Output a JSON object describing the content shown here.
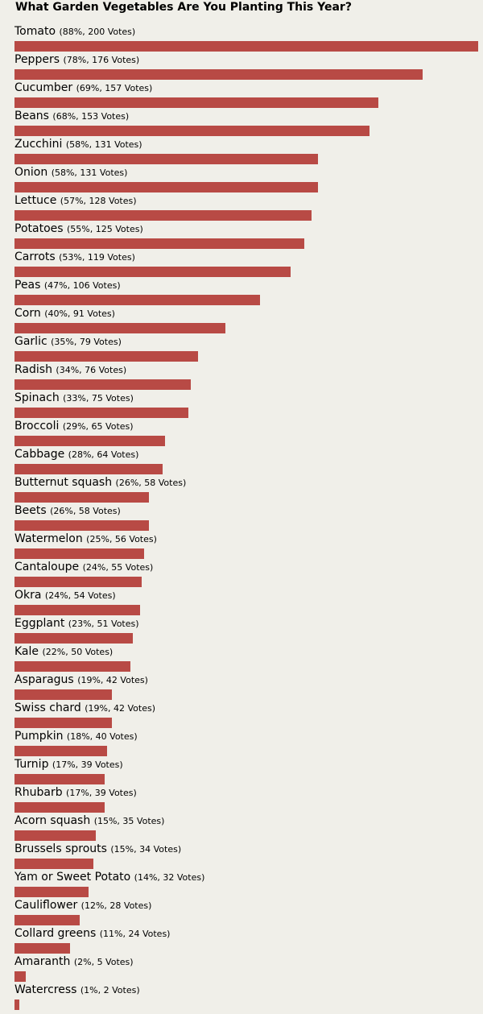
{
  "chart_data": {
    "type": "bar",
    "orientation": "horizontal",
    "title": "What Garden Vegetables Are You Planting This Year?",
    "bar_color": "#b84a45",
    "background_color": "#f0efe9",
    "rows": [
      {
        "name": "Tomato",
        "percent": 88,
        "votes": 200,
        "meta": "(88%, 200 Votes)"
      },
      {
        "name": "Peppers",
        "percent": 78,
        "votes": 176,
        "meta": "(78%, 176 Votes)"
      },
      {
        "name": "Cucumber",
        "percent": 69,
        "votes": 157,
        "meta": "(69%, 157 Votes)"
      },
      {
        "name": "Beans",
        "percent": 68,
        "votes": 153,
        "meta": "(68%, 153 Votes)"
      },
      {
        "name": "Zucchini",
        "percent": 58,
        "votes": 131,
        "meta": "(58%, 131 Votes)"
      },
      {
        "name": "Onion",
        "percent": 58,
        "votes": 131,
        "meta": "(58%, 131 Votes)"
      },
      {
        "name": "Lettuce",
        "percent": 57,
        "votes": 128,
        "meta": "(57%, 128 Votes)"
      },
      {
        "name": "Potatoes",
        "percent": 55,
        "votes": 125,
        "meta": "(55%, 125 Votes)"
      },
      {
        "name": "Carrots",
        "percent": 53,
        "votes": 119,
        "meta": "(53%, 119 Votes)"
      },
      {
        "name": "Peas",
        "percent": 47,
        "votes": 106,
        "meta": "(47%, 106 Votes)"
      },
      {
        "name": "Corn",
        "percent": 40,
        "votes": 91,
        "meta": "(40%, 91 Votes)"
      },
      {
        "name": "Garlic",
        "percent": 35,
        "votes": 79,
        "meta": "(35%, 79 Votes)"
      },
      {
        "name": "Radish",
        "percent": 34,
        "votes": 76,
        "meta": "(34%, 76 Votes)"
      },
      {
        "name": "Spinach",
        "percent": 33,
        "votes": 75,
        "meta": "(33%, 75 Votes)"
      },
      {
        "name": "Broccoli",
        "percent": 29,
        "votes": 65,
        "meta": "(29%, 65 Votes)"
      },
      {
        "name": "Cabbage",
        "percent": 28,
        "votes": 64,
        "meta": "(28%, 64 Votes)"
      },
      {
        "name": "Butternut squash",
        "percent": 26,
        "votes": 58,
        "meta": "(26%, 58 Votes)"
      },
      {
        "name": "Beets",
        "percent": 26,
        "votes": 58,
        "meta": "(26%, 58 Votes)"
      },
      {
        "name": "Watermelon",
        "percent": 25,
        "votes": 56,
        "meta": "(25%, 56 Votes)"
      },
      {
        "name": "Cantaloupe",
        "percent": 24,
        "votes": 55,
        "meta": "(24%, 55 Votes)"
      },
      {
        "name": "Okra",
        "percent": 24,
        "votes": 54,
        "meta": "(24%, 54 Votes)"
      },
      {
        "name": "Eggplant",
        "percent": 23,
        "votes": 51,
        "meta": "(23%, 51 Votes)"
      },
      {
        "name": "Kale",
        "percent": 22,
        "votes": 50,
        "meta": "(22%, 50 Votes)"
      },
      {
        "name": "Asparagus",
        "percent": 19,
        "votes": 42,
        "meta": "(19%, 42 Votes)"
      },
      {
        "name": "Swiss chard",
        "percent": 19,
        "votes": 42,
        "meta": "(19%, 42 Votes)"
      },
      {
        "name": "Pumpkin",
        "percent": 18,
        "votes": 40,
        "meta": "(18%, 40 Votes)"
      },
      {
        "name": "Turnip",
        "percent": 17,
        "votes": 39,
        "meta": "(17%, 39 Votes)"
      },
      {
        "name": "Rhubarb",
        "percent": 17,
        "votes": 39,
        "meta": "(17%, 39 Votes)"
      },
      {
        "name": "Acorn squash",
        "percent": 15,
        "votes": 35,
        "meta": "(15%, 35 Votes)"
      },
      {
        "name": "Brussels sprouts",
        "percent": 15,
        "votes": 34,
        "meta": "(15%, 34 Votes)"
      },
      {
        "name": "Yam or Sweet Potato",
        "percent": 14,
        "votes": 32,
        "meta": "(14%, 32 Votes)"
      },
      {
        "name": "Cauliflower",
        "percent": 12,
        "votes": 28,
        "meta": "(12%, 28 Votes)"
      },
      {
        "name": "Collard greens",
        "percent": 11,
        "votes": 24,
        "meta": "(11%, 24 Votes)"
      },
      {
        "name": "Amaranth",
        "percent": 2,
        "votes": 5,
        "meta": "(2%, 5 Votes)"
      },
      {
        "name": "Watercress",
        "percent": 1,
        "votes": 2,
        "meta": "(1%, 2 Votes)"
      }
    ]
  }
}
